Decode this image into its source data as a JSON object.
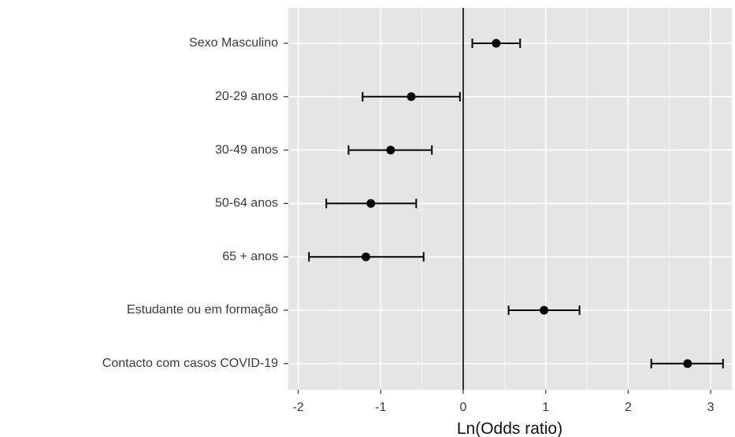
{
  "chart_data": {
    "type": "scatter",
    "subtype": "forest-plot",
    "title": "",
    "xlabel": "Ln(Odds ratio)",
    "ylabel": "",
    "xlim": [
      -2.1,
      3.2
    ],
    "xticks": [
      -2,
      -1,
      0,
      1,
      2,
      3
    ],
    "xtick_labels": [
      "-2",
      "-1",
      "0",
      "1",
      "2",
      "3"
    ],
    "reference_line": 0,
    "grid": true,
    "legend": "none",
    "colors": {
      "panel": "#e5e5e5",
      "grid": "#ffffff",
      "point": "#000000",
      "text": "#3a3a3a"
    },
    "categories": [
      "Sexo Masculino",
      "20-29 anos",
      "30-49 anos",
      "50-64 anos",
      "65 + anos",
      "Estudante ou em formação",
      "Contacto com casos COVID-19"
    ],
    "estimates": [
      0.4,
      -0.63,
      -0.88,
      -1.12,
      -1.18,
      0.98,
      2.72
    ],
    "ci_lower": [
      0.11,
      -1.22,
      -1.39,
      -1.66,
      -1.87,
      0.55,
      2.28
    ],
    "ci_upper": [
      0.69,
      -0.04,
      -0.38,
      -0.57,
      -0.48,
      1.41,
      3.15
    ]
  }
}
